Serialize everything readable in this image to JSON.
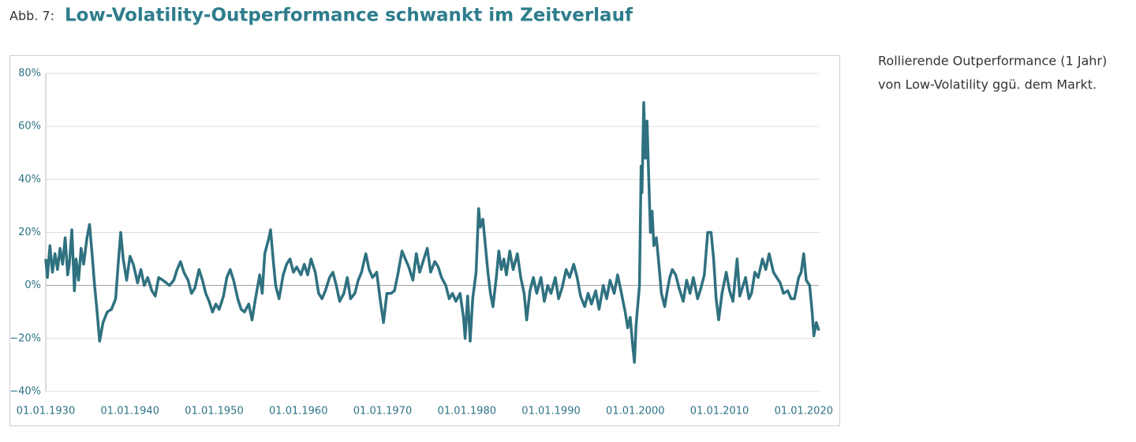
{
  "chart_data": {
    "type": "line",
    "figure_label": "Abb. 7:",
    "title": "Low-Volatility-Outperformance schwankt im Zeitverlauf",
    "description": [
      "Rollierende Outperformance (1 Jahr)",
      "von Low-Volatility ggü. dem Markt."
    ],
    "xlim": [
      1930,
      2021.8
    ],
    "xticks": [
      {
        "value": 1930,
        "label": "01.01.1930"
      },
      {
        "value": 1940,
        "label": "01.01.1940"
      },
      {
        "value": 1950,
        "label": "01.01.1950"
      },
      {
        "value": 1960,
        "label": "01.01.1960"
      },
      {
        "value": 1970,
        "label": "01.01.1970"
      },
      {
        "value": 1980,
        "label": "01.01.1980"
      },
      {
        "value": 1990,
        "label": "01.01.1990"
      },
      {
        "value": 2000,
        "label": "01.01.2000"
      },
      {
        "value": 2010,
        "label": "01.01.2010"
      },
      {
        "value": 2020,
        "label": "01.01.2020"
      }
    ],
    "ylim": [
      -40,
      80
    ],
    "yticks": [
      {
        "value": -40,
        "label": "−40%"
      },
      {
        "value": -20,
        "label": "−20%"
      },
      {
        "value": 0,
        "label": "0%"
      },
      {
        "value": 20,
        "label": "20%"
      },
      {
        "value": 40,
        "label": "40%"
      },
      {
        "value": 60,
        "label": "60%"
      },
      {
        "value": 80,
        "label": "80%"
      }
    ],
    "grid": true,
    "x": [
      1930,
      1930.2,
      1930.5,
      1930.8,
      1931.1,
      1931.4,
      1931.7,
      1932.0,
      1932.3,
      1932.6,
      1932.8,
      1933.1,
      1933.4,
      1933.6,
      1933.9,
      1934.2,
      1934.5,
      1934.9,
      1935.2,
      1935.5,
      1935.8,
      1936.1,
      1936.4,
      1936.8,
      1937.3,
      1937.8,
      1938.3,
      1938.6,
      1938.9,
      1939.2,
      1939.6,
      1940.0,
      1940.4,
      1940.9,
      1941.3,
      1941.7,
      1942.1,
      1942.6,
      1943.0,
      1943.4,
      1943.9,
      1944.3,
      1944.7,
      1945.2,
      1945.6,
      1946.0,
      1946.4,
      1946.9,
      1947.3,
      1947.7,
      1948.2,
      1948.6,
      1949.0,
      1949.4,
      1949.8,
      1950.2,
      1950.6,
      1951.1,
      1951.5,
      1951.9,
      1952.3,
      1952.8,
      1953.2,
      1953.6,
      1954.1,
      1954.5,
      1954.9,
      1955.4,
      1955.7,
      1956.0,
      1956.5,
      1956.7,
      1957.0,
      1957.3,
      1957.7,
      1958.2,
      1958.6,
      1959.0,
      1959.4,
      1959.8,
      1960.3,
      1960.7,
      1961.1,
      1961.5,
      1962.0,
      1962.4,
      1962.8,
      1963.2,
      1963.7,
      1964.1,
      1964.5,
      1964.9,
      1965.4,
      1965.8,
      1966.2,
      1966.7,
      1967.1,
      1967.5,
      1968.0,
      1968.4,
      1968.8,
      1969.3,
      1969.7,
      1970.1,
      1970.5,
      1971.0,
      1971.4,
      1971.8,
      1972.3,
      1972.7,
      1973.1,
      1973.6,
      1974.0,
      1974.4,
      1974.9,
      1975.3,
      1975.7,
      1976.2,
      1976.6,
      1977.0,
      1977.5,
      1977.9,
      1978.3,
      1978.7,
      1979.2,
      1979.6,
      1979.8,
      1980.1,
      1980.4,
      1980.7,
      1981.1,
      1981.4,
      1981.6,
      1981.9,
      1982.2,
      1982.5,
      1982.8,
      1983.1,
      1983.5,
      1983.8,
      1984.1,
      1984.4,
      1984.7,
      1985.1,
      1985.5,
      1986.0,
      1986.4,
      1986.8,
      1987.1,
      1987.5,
      1987.9,
      1988.3,
      1988.8,
      1989.2,
      1989.6,
      1990.0,
      1990.5,
      1990.9,
      1991.3,
      1991.8,
      1992.2,
      1992.7,
      1993.1,
      1993.5,
      1994.0,
      1994.4,
      1994.8,
      1995.3,
      1995.7,
      1996.2,
      1996.6,
      1997.0,
      1997.5,
      1997.9,
      1998.3,
      1998.8,
      1999.1,
      1999.4,
      1999.7,
      1999.9,
      2000.1,
      2000.5,
      2000.7,
      2000.8,
      2001.0,
      2001.2,
      2001.4,
      2001.6,
      2001.8,
      2002.0,
      2002.2,
      2002.5,
      2002.8,
      2003.1,
      2003.5,
      2003.8,
      2004.1,
      2004.4,
      2004.8,
      2005.2,
      2005.7,
      2006.1,
      2006.5,
      2006.9,
      2007.4,
      2007.8,
      2008.2,
      2008.6,
      2009.0,
      2009.3,
      2009.6,
      2009.9,
      2010.3,
      2010.8,
      2011.2,
      2011.6,
      2012.1,
      2012.4,
      2012.7,
      2013.1,
      2013.5,
      2013.8,
      2014.2,
      2014.6,
      2015.1,
      2015.5,
      2015.9,
      2016.4,
      2016.8,
      2017.2,
      2017.6,
      2018.1,
      2018.5,
      2018.9,
      2019.4,
      2019.7,
      2020.0,
      2020.3,
      2020.7,
      2021.0,
      2021.2,
      2021.5,
      2021.8
    ],
    "series": [
      {
        "color": "#2f7180",
        "values": [
          10,
          3,
          15,
          5,
          12,
          6,
          14,
          8,
          18,
          4,
          8,
          21,
          -2,
          10,
          2,
          14,
          8,
          18,
          23,
          12,
          0,
          -10,
          -21,
          -14,
          -10,
          -9,
          -5,
          8,
          20,
          10,
          2,
          11,
          8,
          1,
          6,
          0,
          3,
          -2,
          -4,
          3,
          2,
          1,
          0,
          2,
          6,
          9,
          5,
          2,
          -3,
          -1,
          6,
          2,
          -3,
          -6,
          -10,
          -7,
          -9,
          -4,
          3,
          6,
          2,
          -5,
          -9,
          -10,
          -7,
          -13,
          -5,
          4,
          -3,
          12,
          18,
          21,
          10,
          0,
          -5,
          4,
          8,
          10,
          5,
          7,
          4,
          8,
          4,
          10,
          5,
          -3,
          -5,
          -2,
          3,
          5,
          0,
          -6,
          -3,
          3,
          -5,
          -3,
          2,
          5,
          12,
          6,
          3,
          5,
          -5,
          -14,
          -3,
          -3,
          -2,
          4,
          13,
          10,
          7,
          2,
          12,
          5,
          10,
          14,
          5,
          9,
          7,
          3,
          0,
          -5,
          -3,
          -6,
          -3,
          -12,
          -20,
          -4,
          -21,
          -5,
          5,
          29,
          22,
          25,
          15,
          5,
          -3,
          -8,
          3,
          13,
          6,
          10,
          4,
          13,
          6,
          12,
          3,
          -3,
          -13,
          -2,
          3,
          -3,
          3,
          -6,
          0,
          -3,
          3,
          -5,
          -1,
          6,
          3,
          8,
          3,
          -4,
          -8,
          -3,
          -7,
          -2,
          -9,
          0,
          -5,
          2,
          -3,
          4,
          -2,
          -10,
          -16,
          -12,
          -23,
          -29,
          -15,
          0,
          45,
          35,
          69,
          48,
          62,
          40,
          20,
          28,
          15,
          18,
          8,
          -3,
          -8,
          -2,
          3,
          6,
          4,
          -1,
          -6,
          2,
          -3,
          3,
          -5,
          -1,
          4,
          20,
          20,
          10,
          -5,
          -13,
          -3,
          5,
          -2,
          -6,
          10,
          -4,
          -1,
          3,
          -5,
          -3,
          5,
          3,
          10,
          6,
          12,
          5,
          3,
          1,
          -3,
          -2,
          -5,
          -5,
          3,
          5,
          12,
          2,
          0,
          -10,
          -19,
          -14,
          -17
        ]
      }
    ]
  }
}
